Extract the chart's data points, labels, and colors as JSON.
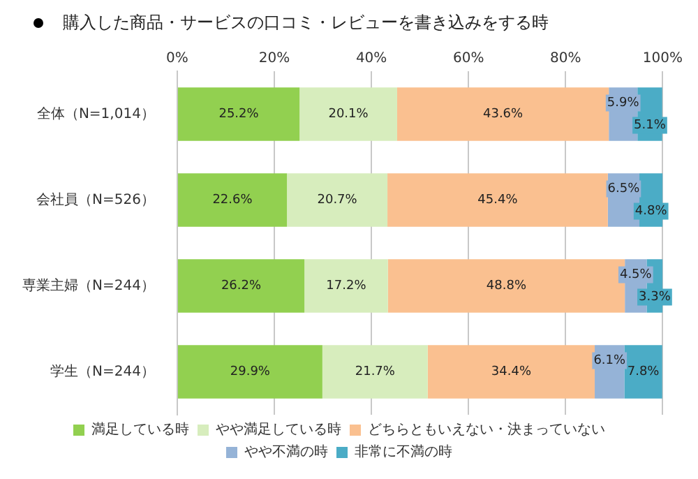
{
  "chart_data": {
    "type": "bar",
    "orientation": "horizontal",
    "stacked": true,
    "title": "購入した商品・サービスの口コミ・レビューを書き込みをする時",
    "categories": [
      "全体（N=1,014）",
      "会社員（N=526）",
      "専業主婦（N=244）",
      "学生（N=244）"
    ],
    "series": [
      {
        "name": "満足している時",
        "color": "#92d050",
        "values": [
          25.2,
          22.6,
          26.2,
          29.9
        ],
        "value_labels": [
          "25.2%",
          "22.6%",
          "26.2%",
          "29.9%"
        ]
      },
      {
        "name": "やや満足している時",
        "color": "#d7edbd",
        "values": [
          20.1,
          20.7,
          17.2,
          21.7
        ],
        "value_labels": [
          "20.1%",
          "20.7%",
          "17.2%",
          "21.7%"
        ]
      },
      {
        "name": "どちらともいえない・決まっていない",
        "color": "#fac090",
        "values": [
          43.6,
          45.4,
          48.8,
          34.4
        ],
        "value_labels": [
          "43.6%",
          "45.4%",
          "48.8%",
          "34.4%"
        ]
      },
      {
        "name": "やや不満の時",
        "color": "#95b3d7",
        "values": [
          5.9,
          6.5,
          4.5,
          6.1
        ],
        "value_labels": [
          "5.9%",
          "6.5%",
          "4.5%",
          "6.1%"
        ]
      },
      {
        "name": "非常に不満の時",
        "color": "#4bacc6",
        "values": [
          5.1,
          4.8,
          3.3,
          7.8
        ],
        "value_labels": [
          "5.1%",
          "4.8%",
          "3.3%",
          "7.8%"
        ]
      }
    ],
    "xlim": [
      0,
      100
    ],
    "xticks": [
      {
        "value": 0,
        "label": "0%"
      },
      {
        "value": 20,
        "label": "20%"
      },
      {
        "value": 40,
        "label": "40%"
      },
      {
        "value": 60,
        "label": "60%"
      },
      {
        "value": 80,
        "label": "80%"
      },
      {
        "value": 100,
        "label": "100%"
      }
    ],
    "grid": "x",
    "legend": "bottom"
  }
}
